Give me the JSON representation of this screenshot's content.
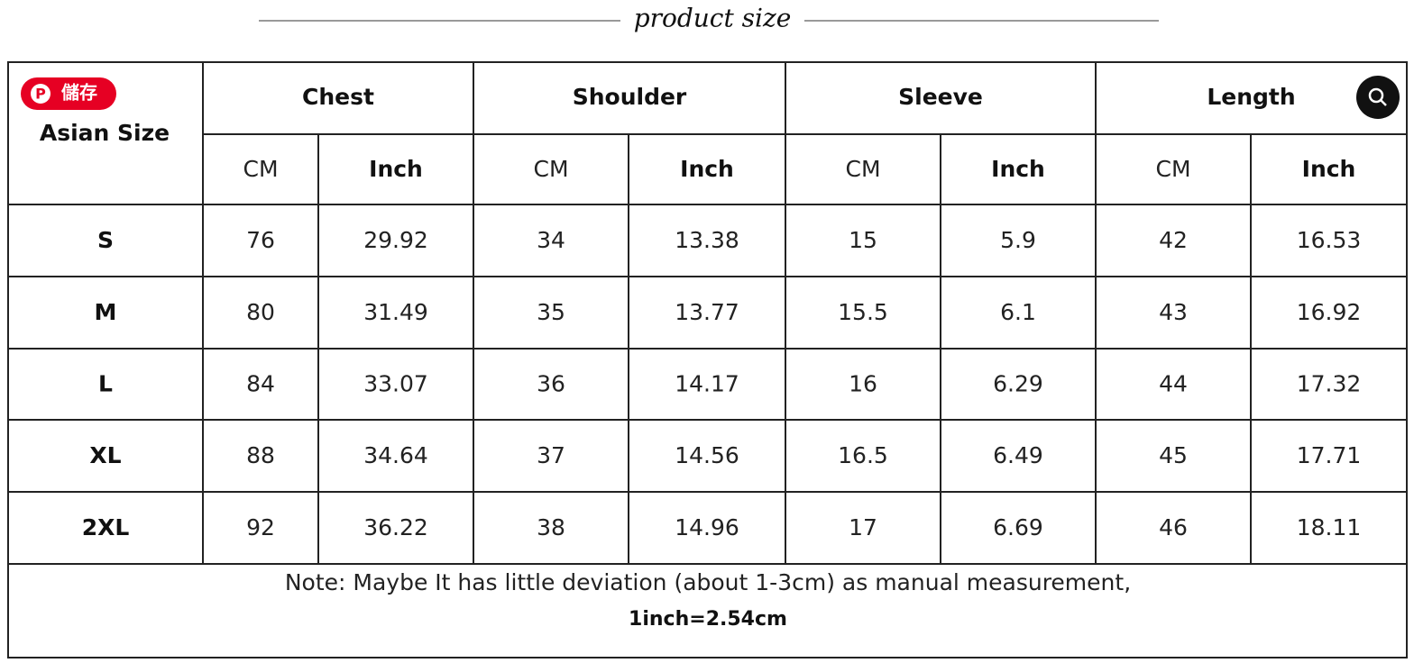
{
  "header": {
    "title": "product size"
  },
  "save_button": "儲存",
  "table": {
    "corner": "Asian Size",
    "groups": [
      "Chest",
      "Shoulder",
      "Sleeve",
      "Length"
    ],
    "units": [
      "CM",
      "Inch",
      "CM",
      "Inch",
      "CM",
      "Inch",
      "CM",
      "Inch"
    ],
    "rows": [
      [
        "S",
        "76",
        "29.92",
        "34",
        "13.38",
        "15",
        "5.9",
        "42",
        "16.53"
      ],
      [
        "M",
        "80",
        "31.49",
        "35",
        "13.77",
        "15.5",
        "6.1",
        "43",
        "16.92"
      ],
      [
        "L",
        "84",
        "33.07",
        "36",
        "14.17",
        "16",
        "6.29",
        "44",
        "17.32"
      ],
      [
        "XL",
        "88",
        "34.64",
        "37",
        "14.56",
        "16.5",
        "6.49",
        "45",
        "17.71"
      ],
      [
        "2XL",
        "92",
        "36.22",
        "38",
        "14.96",
        "17",
        "6.69",
        "46",
        "18.11"
      ]
    ],
    "note": [
      "Note: Maybe It has little deviation (about 1-3cm) as manual measurement,",
      "1inch=2.54cm"
    ]
  }
}
